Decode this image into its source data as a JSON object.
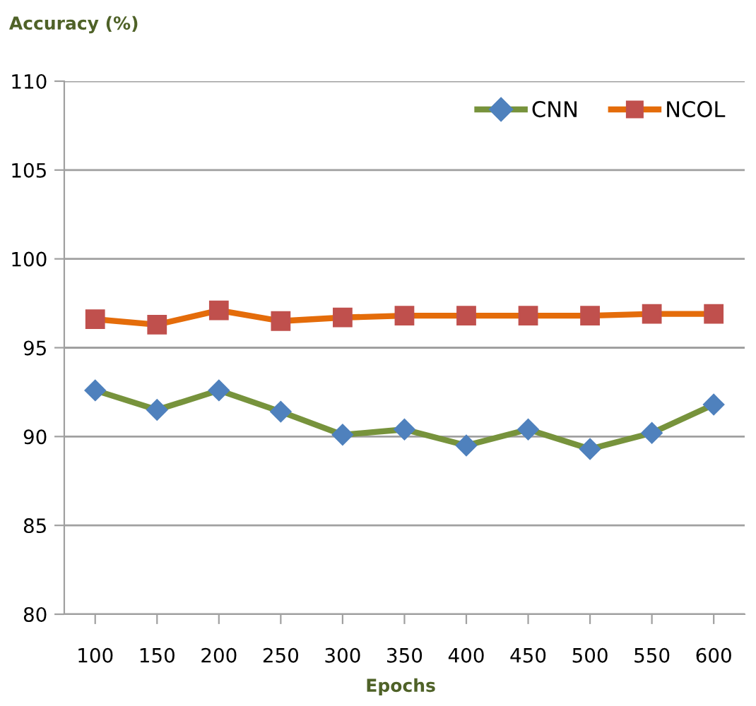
{
  "chart_data": {
    "type": "line",
    "ylabel": "Accuracy (%)",
    "xlabel": "Epochs",
    "categories": [
      "100",
      "150",
      "200",
      "250",
      "300",
      "350",
      "400",
      "450",
      "500",
      "550",
      "600"
    ],
    "series": [
      {
        "name": "CNN",
        "color": "#77933c",
        "marker": "diamond",
        "colors": [
          "#4f81bd",
          "#4f81bd",
          "#4f81bd",
          "#4f81bd",
          "#4f81bd",
          "#4f81bd",
          "#4f81bd",
          "#4f81bd",
          "#4f81bd",
          "#4f81bd",
          "#4f81bd"
        ],
        "values": [
          92.6,
          91.5,
          92.6,
          91.4,
          90.1,
          90.4,
          89.5,
          90.4,
          89.3,
          90.2,
          91.8
        ]
      },
      {
        "name": "NCOL",
        "color": "#e46c0a",
        "marker": "square",
        "colors": [
          "#c0504d",
          "#c0504d",
          "#c0504d",
          "#c0504d",
          "#c0504d",
          "#c0504d",
          "#c0504d",
          "#c0504d",
          "#c0504d",
          "#c0504d",
          "#c0504d"
        ],
        "values": [
          96.6,
          96.3,
          97.1,
          96.5,
          96.7,
          96.8,
          96.8,
          96.8,
          96.8,
          96.9,
          96.9
        ]
      }
    ],
    "ylim": [
      80,
      110
    ],
    "yticks": [
      80,
      85,
      90,
      95,
      100,
      105,
      110
    ],
    "grid": "y",
    "legend": "top right",
    "line_style": "solid"
  }
}
